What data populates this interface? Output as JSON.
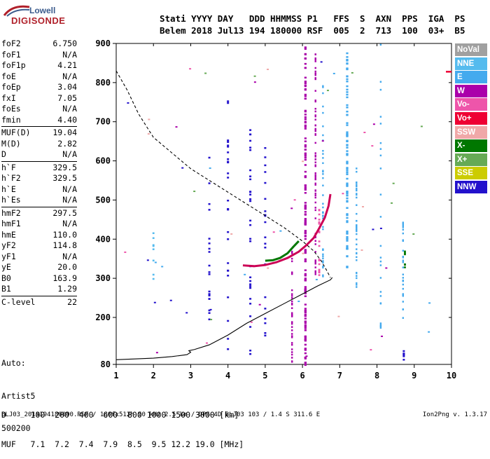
{
  "logo": {
    "top": "Lowell",
    "bottom": "DIGISONDE"
  },
  "header": {
    "line1": "Stati YYYY DAY   DDD HHMMSS P1   FFS  S  AXN  PPS  IGA  PS",
    "line2": "Belem 2018 Jul13 194 180000 RSF  005  2  713  100  03+  B5"
  },
  "params": [
    {
      "name": "foF2",
      "value": "6.750"
    },
    {
      "name": "foF1",
      "value": "N/A"
    },
    {
      "name": "foF1p",
      "value": "4.21"
    },
    {
      "name": "foE",
      "value": "N/A"
    },
    {
      "name": "foEp",
      "value": "3.04"
    },
    {
      "name": "fxI",
      "value": "7.05"
    },
    {
      "name": "foEs",
      "value": "N/A"
    },
    {
      "name": "fmin",
      "value": "4.40"
    },
    {
      "sep": true
    },
    {
      "name": "MUF(D)",
      "value": "19.04"
    },
    {
      "name": "M(D)",
      "value": "2.82"
    },
    {
      "name": "D",
      "value": "N/A"
    },
    {
      "sep": true
    },
    {
      "name": "h`F",
      "value": "329.5"
    },
    {
      "name": "h`F2",
      "value": "329.5"
    },
    {
      "name": "h`E",
      "value": "N/A"
    },
    {
      "name": "h`Es",
      "value": "N/A"
    },
    {
      "sep": true
    },
    {
      "name": "hmF2",
      "value": "297.5"
    },
    {
      "name": "hmF1",
      "value": "N/A"
    },
    {
      "name": "hmE",
      "value": "110.0"
    },
    {
      "name": "yF2",
      "value": "114.8"
    },
    {
      "name": "yF1",
      "value": "N/A"
    },
    {
      "name": "yE",
      "value": "20.0"
    },
    {
      "name": "B0",
      "value": "163.9"
    },
    {
      "name": "B1",
      "value": "1.29"
    },
    {
      "sep": true
    },
    {
      "name": "C-level",
      "value": "22"
    }
  ],
  "auto": {
    "line1": "Auto:",
    "line2": "Artist5",
    "line3": "500200"
  },
  "legend": [
    {
      "label": "NoVal",
      "color": "#a0a0a0"
    },
    {
      "label": "NNE",
      "color": "#55bbee"
    },
    {
      "label": "E",
      "color": "#44aaee"
    },
    {
      "label": "W",
      "color": "#aa00aa"
    },
    {
      "label": "Vo-",
      "color": "#ee55aa"
    },
    {
      "label": "Vo+",
      "color": "#ee0033"
    },
    {
      "label": "SSW",
      "color": "#f0a8a8"
    },
    {
      "label": "X-",
      "color": "#007700"
    },
    {
      "label": "X+",
      "color": "#66aa55"
    },
    {
      "label": "SSE",
      "color": "#cccc00"
    },
    {
      "label": "NNW",
      "color": "#2211cc"
    }
  ],
  "muf_table": {
    "d_line": "D     100  200  400  600  800 1000 1500 3000 [km]",
    "muf_line": "MUF   7.1  7.2  7.4  7.9  8.5  9.5 12.2 19.0 [MHz]"
  },
  "footer": "BLJ03_2018194180000.RSF / 180fx512h 50 kHz 2.5 km / DPS-4D BLJ03 103 / 1.4 S 311.6 E",
  "version": "Ion2Png v. 1.3.17",
  "chart_data": {
    "type": "scatter",
    "xlabel": "",
    "ylabel": "",
    "xlim": [
      1,
      10
    ],
    "ylim": [
      80,
      900
    ],
    "xticks": [
      1,
      2,
      3,
      4,
      5,
      6,
      7,
      8,
      9,
      10
    ],
    "yticks": [
      80,
      200,
      300,
      400,
      500,
      600,
      700,
      800,
      900
    ],
    "series": [
      {
        "name": "profile",
        "style": "solid",
        "color": "#000000",
        "x": [
          1.0,
          1.5,
          2.0,
          2.5,
          2.9,
          3.0,
          2.95,
          3.1,
          3.5,
          4.0,
          4.5,
          5.0,
          5.5,
          6.0,
          6.4,
          6.75,
          6.8
        ],
        "y": [
          92,
          94,
          96,
          100,
          105,
          111,
          115,
          118,
          130,
          155,
          185,
          210,
          235,
          260,
          280,
          296,
          302
        ]
      },
      {
        "name": "extrapolation",
        "style": "dashed",
        "color": "#000000",
        "x": [
          1.0,
          1.3,
          1.6,
          2.0,
          2.5,
          3.0,
          3.5,
          4.0,
          4.5,
          5.0,
          5.5,
          6.0,
          6.3,
          6.5,
          6.65,
          6.75
        ],
        "y": [
          830,
          780,
          720,
          660,
          620,
          580,
          550,
          520,
          490,
          460,
          430,
          395,
          370,
          345,
          320,
          302
        ]
      },
      {
        "name": "F2 trace",
        "style": "solid",
        "color": "#cc0055",
        "x": [
          4.4,
          4.7,
          5.0,
          5.3,
          5.6,
          5.9,
          6.1,
          6.3,
          6.45,
          6.6,
          6.7,
          6.75
        ],
        "y": [
          333,
          331,
          334,
          341,
          352,
          368,
          384,
          403,
          428,
          455,
          485,
          515
        ]
      },
      {
        "name": "X trace",
        "style": "solid",
        "color": "#007700",
        "x": [
          5.0,
          5.2,
          5.4,
          5.6,
          5.75,
          5.9
        ],
        "y": [
          345,
          346,
          352,
          364,
          380,
          395
        ]
      }
    ]
  }
}
